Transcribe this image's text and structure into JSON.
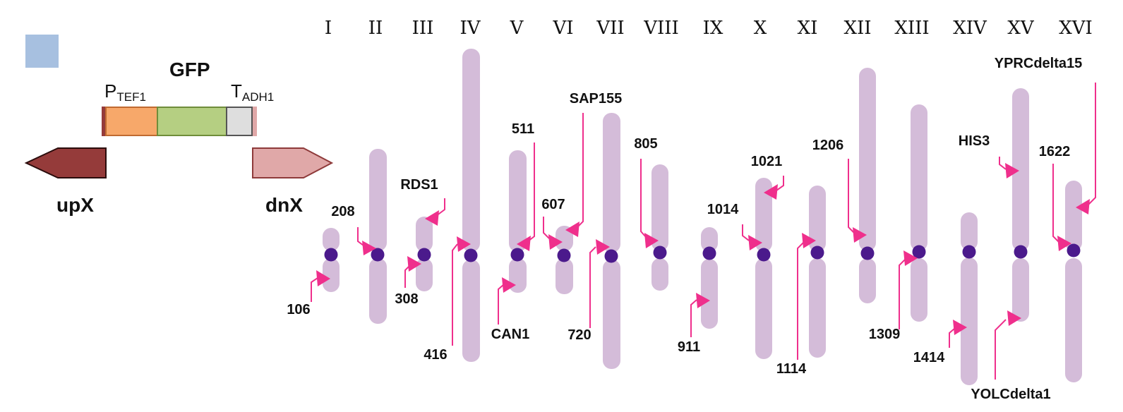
{
  "colors": {
    "chromosome": "#d4bcd9",
    "centromere": "#4b1a8c",
    "marker": "#ef2f8c",
    "legend_square": "#a7c0e0",
    "promoter": "#f7a86a",
    "gfp": "#b5cf82",
    "terminator": "#dedede",
    "upX": "#953b3a",
    "dnX": "#e0a8a8"
  },
  "cassette": {
    "promoter_main": "P",
    "promoter_sub": "TEF1",
    "gene": "GFP",
    "terminator_main": "T",
    "terminator_sub": "ADH1",
    "up_label": "upX",
    "dn_label": "dnX"
  },
  "chromosomes": [
    {
      "numeral": "I",
      "labels": [
        "106"
      ]
    },
    {
      "numeral": "II",
      "labels": [
        "208"
      ]
    },
    {
      "numeral": "III",
      "labels": [
        "RDS1",
        "308"
      ]
    },
    {
      "numeral": "IV",
      "labels": [
        "416"
      ]
    },
    {
      "numeral": "V",
      "labels": [
        "511",
        "CAN1"
      ]
    },
    {
      "numeral": "VI",
      "labels": [
        "607"
      ]
    },
    {
      "numeral": "VII",
      "labels": [
        "SAP155",
        "720"
      ]
    },
    {
      "numeral": "VIII",
      "labels": [
        "805"
      ]
    },
    {
      "numeral": "IX",
      "labels": [
        "911"
      ]
    },
    {
      "numeral": "X",
      "labels": [
        "1021",
        "1014"
      ]
    },
    {
      "numeral": "XI",
      "labels": [
        "1114"
      ]
    },
    {
      "numeral": "XII",
      "labels": [
        "1206"
      ]
    },
    {
      "numeral": "XIII",
      "labels": [
        "1309"
      ]
    },
    {
      "numeral": "XIV",
      "labels": [
        "1414"
      ]
    },
    {
      "numeral": "XV",
      "labels": [
        "HIS3",
        "YOLCdelta1"
      ]
    },
    {
      "numeral": "XVI",
      "labels": [
        "YPRCdelta15",
        "1622"
      ]
    }
  ]
}
